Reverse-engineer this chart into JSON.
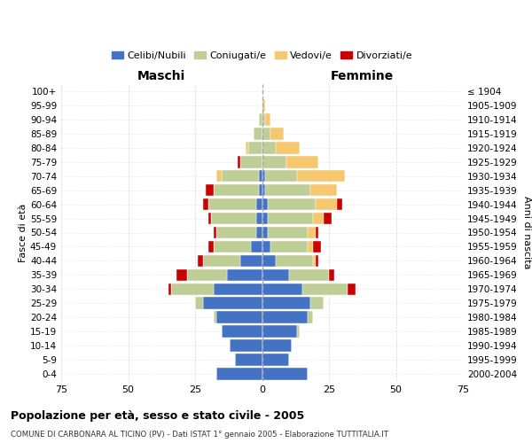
{
  "age_groups": [
    "0-4",
    "5-9",
    "10-14",
    "15-19",
    "20-24",
    "25-29",
    "30-34",
    "35-39",
    "40-44",
    "45-49",
    "50-54",
    "55-59",
    "60-64",
    "65-69",
    "70-74",
    "75-79",
    "80-84",
    "85-89",
    "90-94",
    "95-99",
    "100+"
  ],
  "birth_years": [
    "2000-2004",
    "1995-1999",
    "1990-1994",
    "1985-1989",
    "1980-1984",
    "1975-1979",
    "1970-1974",
    "1965-1969",
    "1960-1964",
    "1955-1959",
    "1950-1954",
    "1945-1949",
    "1940-1944",
    "1935-1939",
    "1930-1934",
    "1925-1929",
    "1920-1924",
    "1915-1919",
    "1910-1914",
    "1905-1909",
    "≤ 1904"
  ],
  "colors": {
    "celibe": "#4472C4",
    "coniugato": "#BFCD96",
    "vedovo": "#F5C76E",
    "divorziato": "#CC0000"
  },
  "males": {
    "celibe": [
      17,
      10,
      12,
      15,
      17,
      22,
      18,
      13,
      8,
      4,
      2,
      2,
      2,
      1,
      1,
      0,
      0,
      0,
      0,
      0,
      0
    ],
    "coniugato": [
      0,
      0,
      0,
      0,
      1,
      3,
      16,
      15,
      14,
      14,
      15,
      17,
      18,
      17,
      14,
      8,
      5,
      3,
      1,
      0,
      0
    ],
    "vedovo": [
      0,
      0,
      0,
      0,
      0,
      0,
      0,
      0,
      0,
      0,
      0,
      0,
      0,
      0,
      2,
      0,
      1,
      0,
      0,
      0,
      0
    ],
    "divorziato": [
      0,
      0,
      0,
      0,
      0,
      0,
      1,
      4,
      2,
      2,
      1,
      1,
      2,
      3,
      0,
      1,
      0,
      0,
      0,
      0,
      0
    ]
  },
  "females": {
    "nubile": [
      17,
      10,
      11,
      13,
      17,
      18,
      15,
      10,
      5,
      3,
      2,
      2,
      2,
      1,
      1,
      0,
      0,
      0,
      0,
      0,
      0
    ],
    "coniugata": [
      0,
      0,
      0,
      1,
      2,
      5,
      17,
      15,
      14,
      14,
      15,
      17,
      18,
      17,
      12,
      9,
      5,
      3,
      1,
      0,
      0
    ],
    "vedova": [
      0,
      0,
      0,
      0,
      0,
      0,
      0,
      0,
      1,
      2,
      3,
      4,
      8,
      10,
      18,
      12,
      9,
      5,
      2,
      1,
      0
    ],
    "divorziata": [
      0,
      0,
      0,
      0,
      0,
      0,
      3,
      2,
      1,
      3,
      1,
      3,
      2,
      0,
      0,
      0,
      0,
      0,
      0,
      0,
      0
    ]
  },
  "xlim": 75,
  "title": "Popolazione per età, sesso e stato civile - 2005",
  "subtitle": "COMUNE DI CARBONARA AL TICINO (PV) - Dati ISTAT 1° gennaio 2005 - Elaborazione TUTTITALIA.IT",
  "xlabel_left": "Maschi",
  "xlabel_right": "Femmine",
  "ylabel_left": "Fasce di età",
  "ylabel_right": "Anni di nascita",
  "legend_labels": [
    "Celibi/Nubili",
    "Coniugati/e",
    "Vedovi/e",
    "Divorziati/e"
  ],
  "bg_color": "#FFFFFF",
  "grid_color": "#CCCCCC"
}
